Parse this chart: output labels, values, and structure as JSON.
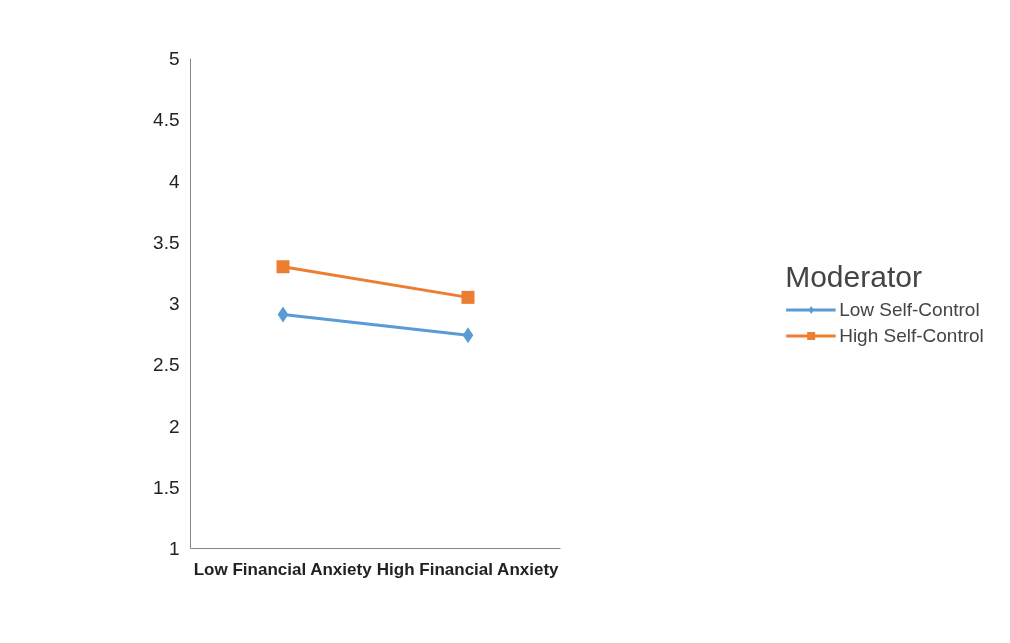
{
  "chart_data": {
    "type": "line",
    "categories": [
      "Low Financial Anxiety",
      "High Financial Anxiety"
    ],
    "legend_title": "Moderator",
    "series": [
      {
        "name": "Low Self-Control",
        "color": "#5b9bd5",
        "values": [
          2.91,
          2.74
        ],
        "marker": "diamond"
      },
      {
        "name": "High Self-Control",
        "color": "#ed7d31",
        "values": [
          3.3,
          3.05
        ],
        "marker": "square"
      }
    ],
    "ylim": [
      1,
      5
    ],
    "yticks": [
      1,
      1.5,
      2,
      2.5,
      3,
      3.5,
      4,
      4.5,
      5
    ],
    "grid": false,
    "legend": "right"
  }
}
